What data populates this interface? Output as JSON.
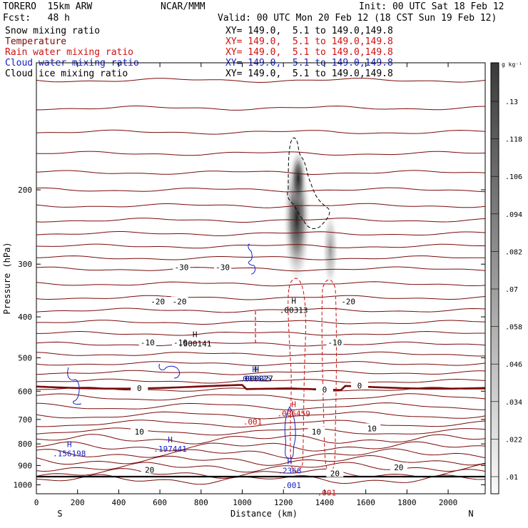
{
  "header": {
    "model": "TORERO  15km ARW",
    "center": "NCAR/MMM",
    "init": "Init: 00 UTC Sat 18 Feb 12",
    "fcst": "Fcst:   48 h",
    "valid": "Valid: 00 UTC Mon 20 Feb 12 (18 CST Sun 19 Feb 12)"
  },
  "fields": [
    {
      "name": "Snow mixing ratio",
      "xy": "XY= 149.0,  5.1 to 149.0,149.8",
      "color": "#000000"
    },
    {
      "name": "Temperature",
      "xy": "XY= 149.0,  5.1 to 149.0,149.8",
      "color": "#7a0a0a"
    },
    {
      "name": "Rain water mixing ratio",
      "xy": "XY= 149.0,  5.1 to 149.0,149.8",
      "color": "#d01010"
    },
    {
      "name": "Cloud water mixing ratio",
      "xy": "XY= 149.0,  5.1 to 149.0,149.8",
      "color": "#1420c8"
    },
    {
      "name": "Cloud ice mixing ratio",
      "xy": "XY= 149.0,  5.1 to 149.0,149.8",
      "color": "#000000"
    }
  ],
  "colors": {
    "temperature": "#7a0a0a",
    "rain": "#d01010",
    "cloud_water": "#1420c8",
    "snow": "#000000"
  },
  "chart_data": {
    "type": "cross-section",
    "xlabel": "Distance (km)",
    "ylabel": "Pressure (hPa)",
    "xlim": [
      0,
      2180
    ],
    "ylim": [
      1050,
      100
    ],
    "x_ticks": [
      0,
      200,
      400,
      600,
      800,
      1000,
      1200,
      1400,
      1600,
      1800,
      2000
    ],
    "y_ticks": [
      200,
      300,
      400,
      500,
      600,
      700,
      800,
      900,
      1000
    ],
    "y_log": true,
    "x_end_labels": {
      "left": "S",
      "right": "N"
    },
    "colorbar": {
      "units": "g kg⁻¹",
      "ticks": [
        ".01",
        ".022",
        ".034",
        ".046",
        ".058",
        ".07",
        ".082",
        ".094",
        ".106",
        ".118",
        ".13"
      ]
    },
    "temperature_contours": [
      {
        "level": 10,
        "label": "10",
        "at": [
          [
            500,
            748
          ],
          [
            1360,
            748
          ],
          [
            1630,
            735
          ]
        ]
      },
      {
        "level": 20,
        "label": "20",
        "at": [
          [
            550,
            922
          ],
          [
            1450,
            940
          ],
          [
            1760,
            910
          ]
        ]
      },
      {
        "level": -10,
        "label": "-10",
        "at": [
          [
            540,
            460
          ],
          [
            700,
            460
          ],
          [
            1450,
            460
          ]
        ]
      },
      {
        "level": -20,
        "label": "-20",
        "at": [
          [
            590,
            368
          ],
          [
            695,
            368
          ],
          [
            1515,
            368
          ]
        ]
      },
      {
        "level": -30,
        "label": "-30",
        "at": [
          [
            705,
            305
          ],
          [
            905,
            305
          ]
        ]
      }
    ],
    "freezing_level": {
      "label": "0",
      "at": [
        [
          500,
          590
        ],
        [
          1400,
          595
        ],
        [
          1570,
          582
        ]
      ]
    },
    "maxima": [
      {
        "field": "Snow mixing ratio",
        "label": ".00313",
        "x": 1250,
        "p": 375
      },
      {
        "field": "Snow mixing ratio",
        "label": ".000141",
        "x": 770,
        "p": 450
      },
      {
        "field": "Snow mixing ratio",
        "label": ".000027",
        "x": 1070,
        "p": 545
      },
      {
        "field": "Rain water mixing ratio",
        "label": ".006459",
        "x": 1250,
        "p": 660
      },
      {
        "field": "Rain water mixing ratio",
        "label": ".001",
        "x": 1050,
        "p": 690
      },
      {
        "field": "Rain water mixing ratio",
        "label": ".001",
        "x": 1410,
        "p": 1015
      },
      {
        "field": "Cloud water mixing ratio",
        "label": ".156198",
        "x": 160,
        "p": 820
      },
      {
        "field": "Cloud water mixing ratio",
        "label": ".197441",
        "x": 650,
        "p": 800
      },
      {
        "field": "Cloud water mixing ratio",
        "label": ".2366",
        "x": 1230,
        "p": 900
      },
      {
        "field": "Cloud water mixing ratio",
        "label": ".001",
        "x": 1240,
        "p": 975
      },
      {
        "field": "Cloud water mixing ratio",
        "label": ".000625",
        "x": 1060,
        "p": 545
      }
    ]
  }
}
